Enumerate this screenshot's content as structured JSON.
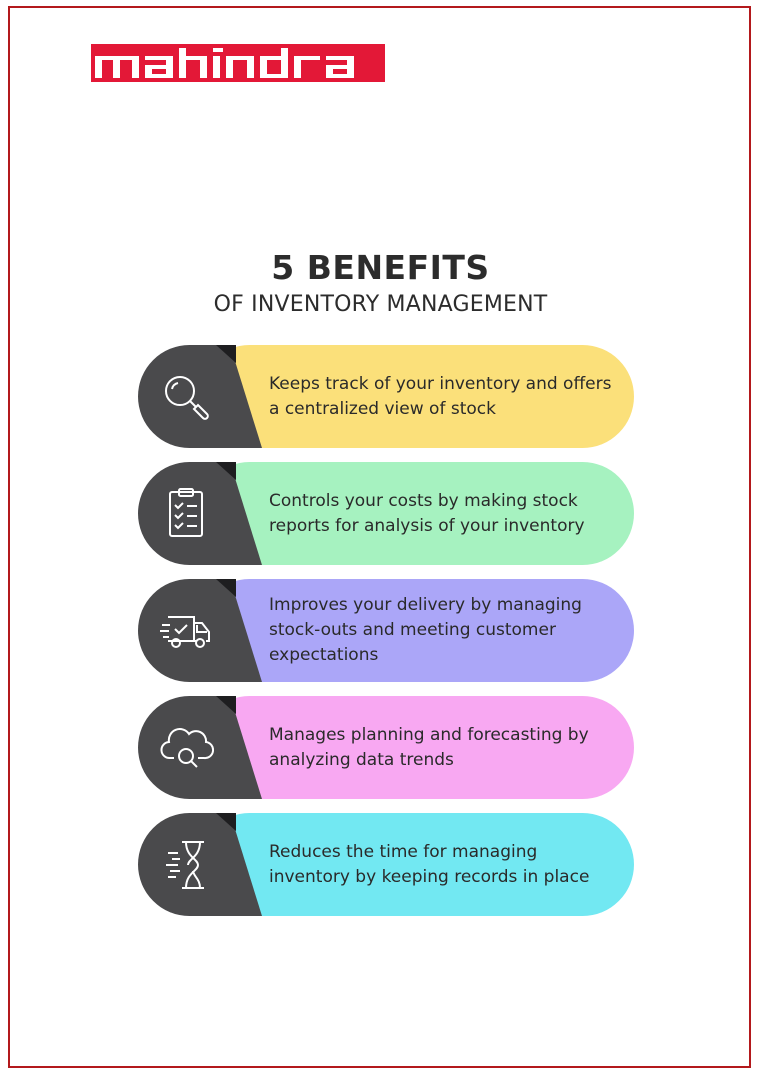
{
  "logo": {
    "text": "Mahindra",
    "color": "#e31837"
  },
  "heading": {
    "title": "5 BENEFITS",
    "subtitle": "OF INVENTORY MANAGEMENT"
  },
  "benefits": [
    {
      "text": "Keeps track of your inventory and offers a centralized view of stock",
      "color": "#fbe07a",
      "icon": "magnifier-icon"
    },
    {
      "text": "Controls your costs by making stock reports for analysis of your inventory",
      "color": "#a6f2c0",
      "icon": "clipboard-checklist-icon"
    },
    {
      "text": "Improves your delivery by managing stock-outs and meeting customer expectations",
      "color": "#aba6f8",
      "icon": "delivery-truck-icon"
    },
    {
      "text": "Manages planning and forecasting by analyzing data trends",
      "color": "#f8a8f2",
      "icon": "cloud-search-icon"
    },
    {
      "text": "Reduces the time for managing inventory by keeping records in place",
      "color": "#72e8f2",
      "icon": "hourglass-icon"
    }
  ]
}
